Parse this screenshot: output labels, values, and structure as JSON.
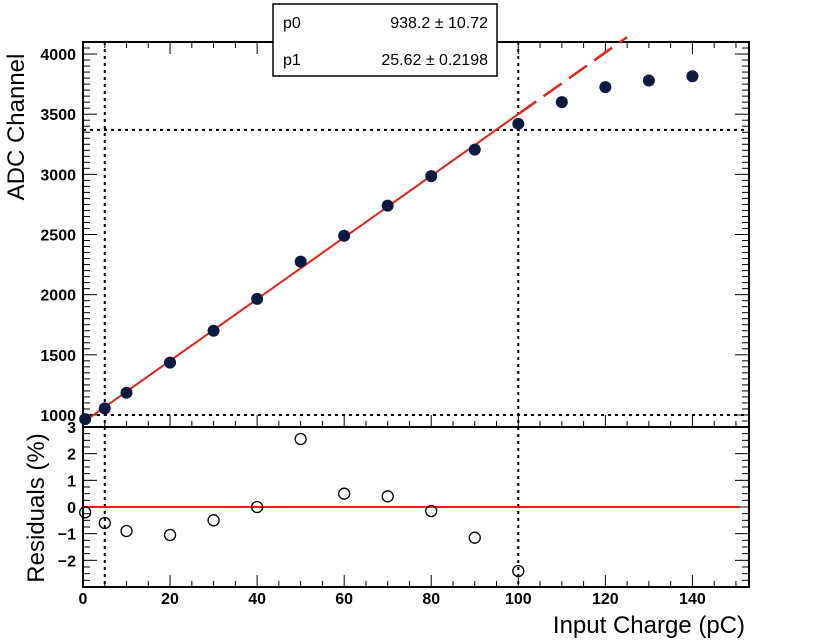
{
  "chart_data": [
    {
      "type": "scatter",
      "panel": "main",
      "ylabel": "ADC Channel",
      "xlim": [
        0,
        153
      ],
      "ylim": [
        900,
        4100
      ],
      "x_ticks": [
        0,
        20,
        40,
        60,
        80,
        100,
        120,
        140
      ],
      "y_ticks": [
        1000,
        1500,
        2000,
        2500,
        3000,
        3500,
        4000
      ],
      "y_tick_labels": [
        "1000",
        "1500",
        "2000",
        "2500",
        "3000",
        "3500",
        "4000"
      ],
      "series": [
        {
          "color": "#0d1a40",
          "x": [
            0.5,
            5,
            10,
            20,
            30,
            40,
            50,
            60,
            70,
            80,
            90,
            100,
            110,
            120,
            130,
            140
          ],
          "values": [
            965,
            1055,
            1185,
            1435,
            1700,
            1965,
            2275,
            2490,
            2740,
            2985,
            3205,
            3420,
            3600,
            3725,
            3780,
            3815
          ]
        }
      ],
      "fit": {
        "type": "linear",
        "color": "#e8201c",
        "p0": 938.2,
        "p1": 25.62,
        "solid_range": [
          0,
          100
        ],
        "dashed_range": [
          100,
          125
        ]
      },
      "stats_box": {
        "rows": [
          {
            "name": "p0",
            "value": "938.2 ± 10.72"
          },
          {
            "name": "p1",
            "value": "25.62 ± 0.2198"
          }
        ]
      },
      "reference_lines": {
        "vertical_x": [
          5,
          100
        ],
        "horizontal_y": [
          1000,
          3370
        ]
      }
    },
    {
      "type": "scatter",
      "panel": "residuals",
      "xlabel": "Input Charge (pC)",
      "ylabel": "Residuals (%)",
      "xlim": [
        0,
        153
      ],
      "ylim": [
        -3,
        3
      ],
      "x_ticks": [
        0,
        20,
        40,
        60,
        80,
        100,
        120,
        140
      ],
      "x_tick_labels": [
        "0",
        "20",
        "40",
        "60",
        "80",
        "100",
        "120",
        "140"
      ],
      "y_ticks": [
        -2,
        -1,
        0,
        1,
        2,
        3
      ],
      "y_tick_labels": [
        "−2",
        "−1",
        "0",
        "1",
        "2",
        "3"
      ],
      "series": [
        {
          "marker": "open-circle",
          "x": [
            0.5,
            5,
            10,
            20,
            30,
            40,
            50,
            60,
            70,
            80,
            90,
            100
          ],
          "values": [
            -0.2,
            -0.6,
            -0.9,
            -1.05,
            -0.5,
            0.0,
            2.55,
            0.5,
            0.4,
            -0.15,
            -1.15,
            -2.4
          ]
        }
      ],
      "zero_line": {
        "y": 0,
        "color": "#e8201c"
      },
      "reference_lines": {
        "vertical_x": [
          5,
          100
        ]
      }
    }
  ]
}
